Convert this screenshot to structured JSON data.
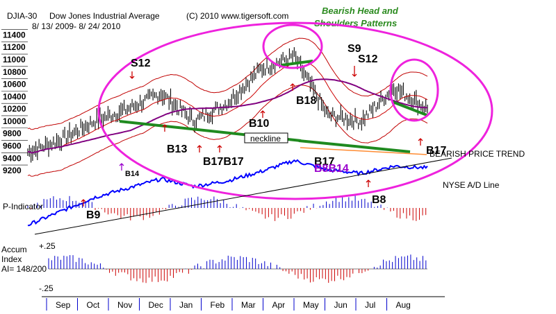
{
  "header": {
    "ticker": "DJIA-30",
    "name": "Dow Jones Industrial Average",
    "copyright": "(C) 2010 www.tigersoft.com",
    "dates": "8/ 13/ 2009- 8/ 24/ 2010"
  },
  "title_lines": [
    "Bearish Head and",
    "Shoulders Patterns"
  ],
  "neckline_label": "neckline",
  "trend_label": "BEARISH PRICE TREND",
  "adline_label": "NYSE A/D Line",
  "pind": {
    "label": "P-Indicator"
  },
  "accum": {
    "label_lines": [
      "Accum",
      "Index",
      "AI= 148/200"
    ],
    "top_label": "+.25",
    "bottom_label": "-.25"
  },
  "colors": {
    "price_bar": "#000000",
    "ma": "#cc0000",
    "ma_long": "#800080",
    "band": "#c00000",
    "neckline": "#1f8a1f",
    "ellipse": "#ee22dd",
    "adline": "#0000ff",
    "pind_pos": "#0000cc",
    "pind_neg": "#cc0000",
    "trend": "#ff8c33",
    "signal_red": "#cc0000",
    "signal_black": "#000000",
    "signal_purple": "#9900cc",
    "title": "#2a8a1e"
  },
  "signals": [
    {
      "text": "S12",
      "color": "black"
    },
    {
      "text": "S9",
      "color": "black"
    },
    {
      "text": "S12",
      "color": "black"
    },
    {
      "text": "B18",
      "color": "black"
    },
    {
      "text": "B10",
      "color": "black"
    },
    {
      "text": "B13",
      "color": "black"
    },
    {
      "text": "B17B17",
      "color": "black"
    },
    {
      "text": "B14",
      "color": "black"
    },
    {
      "text": "B17",
      "color": "black"
    },
    {
      "text": "B17",
      "color": "black"
    },
    {
      "text": "B8",
      "color": "black"
    },
    {
      "text": "B9",
      "color": "black"
    },
    {
      "text": "B8B14",
      "color": "purple"
    }
  ],
  "chart_data": {
    "type": "candlestick",
    "title": "Dow Jones Industrial Average",
    "x_labels": [
      "Sep",
      "Oct",
      "Nov",
      "Dec",
      "Jan",
      "Feb",
      "Mar",
      "Apr",
      "May",
      "Jun",
      "Jul",
      "Aug"
    ],
    "y_ticks": [
      9200,
      9400,
      9600,
      9800,
      10000,
      10200,
      10400,
      10600,
      10800,
      11000,
      11200,
      11400
    ],
    "ylim": [
      9100,
      11450
    ],
    "series": [
      {
        "name": "DJIA-30 (monthly approximate close)",
        "values": [
          9500,
          9700,
          10000,
          10200,
          10450,
          10000,
          10300,
          10850,
          11050,
          10100,
          10000,
          10550,
          10200
        ]
      },
      {
        "name": "NYSE A/D Line (relative)",
        "values": [
          0.1,
          0.25,
          0.4,
          0.5,
          0.6,
          0.52,
          0.58,
          0.68,
          0.8,
          0.7,
          0.66,
          0.74,
          0.72
        ]
      }
    ],
    "categories": [
      "Aug 09",
      "Sep",
      "Oct",
      "Nov",
      "Dec",
      "Jan",
      "Feb",
      "Mar",
      "Apr",
      "May",
      "Jun",
      "Jul",
      "Aug 10"
    ],
    "accum_range": [
      -0.25,
      0.25
    ]
  }
}
